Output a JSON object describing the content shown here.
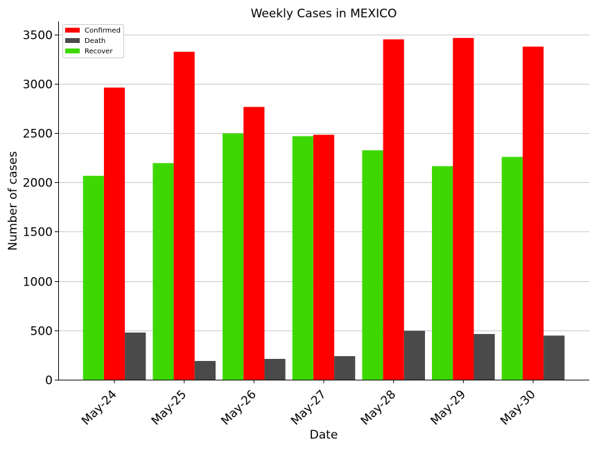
{
  "chart_data": {
    "type": "bar",
    "title": "Weekly Cases in MEXICO",
    "xlabel": "Date",
    "ylabel": "Number of cases",
    "categories": [
      "May-24",
      "May-25",
      "May-26",
      "May-27",
      "May-28",
      "May-29",
      "May-30"
    ],
    "series": [
      {
        "name": "Recover",
        "color": "#3dd802",
        "values": [
          2066,
          2195,
          2496,
          2468,
          2325,
          2164,
          2258
        ]
      },
      {
        "name": "Confirmed",
        "color": "#ff0000",
        "values": [
          2960,
          3323,
          2764,
          2482,
          3449,
          3463,
          3375
        ]
      },
      {
        "name": "Death",
        "color": "#4a4a4a",
        "values": [
          478,
          190,
          211,
          239,
          496,
          463,
          447
        ]
      }
    ],
    "legend_order": [
      "Confirmed",
      "Death",
      "Recover"
    ],
    "legend_position": "top-left",
    "ylim": [
      0,
      3630
    ],
    "yticks": [
      0,
      500,
      1000,
      1500,
      2000,
      2500,
      3000,
      3500
    ],
    "grid": "y"
  }
}
